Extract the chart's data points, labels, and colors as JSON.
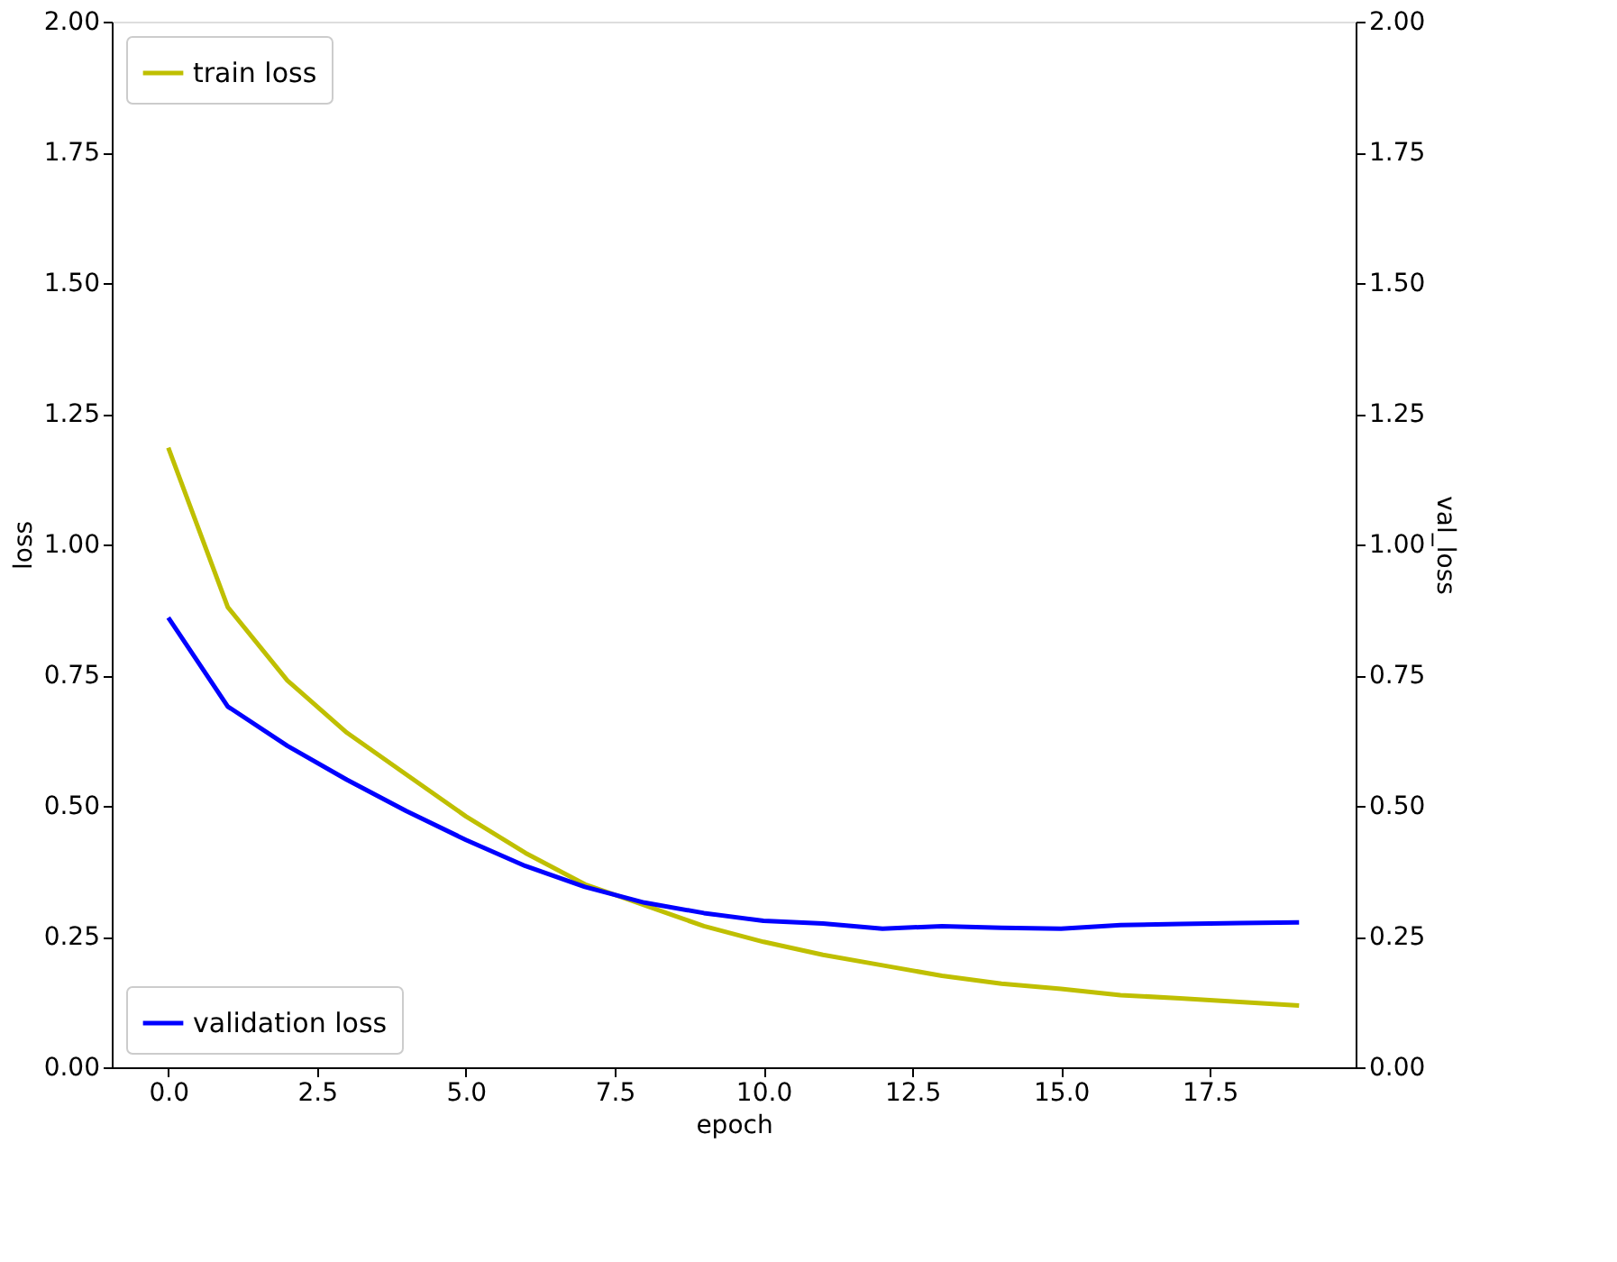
{
  "chart_data": {
    "type": "line",
    "xlabel": "epoch",
    "ylabel": "loss",
    "y2label": "val_loss",
    "x": [
      0,
      1,
      2,
      3,
      4,
      5,
      6,
      7,
      8,
      9,
      10,
      11,
      12,
      13,
      14,
      15,
      16,
      17,
      18,
      19
    ],
    "series": [
      {
        "name": "train loss",
        "color": "#bfbf00",
        "values": [
          1.185,
          0.88,
          0.74,
          0.64,
          0.56,
          0.48,
          0.41,
          0.35,
          0.31,
          0.27,
          0.24,
          0.215,
          0.195,
          0.175,
          0.16,
          0.15,
          0.138,
          0.132,
          0.125,
          0.118
        ]
      },
      {
        "name": "validation loss",
        "color": "#0000ff",
        "axis": "y2",
        "values": [
          0.86,
          0.69,
          0.615,
          0.55,
          0.49,
          0.435,
          0.385,
          0.345,
          0.315,
          0.295,
          0.28,
          0.275,
          0.265,
          0.27,
          0.267,
          0.265,
          0.272,
          0.274,
          0.276,
          0.277
        ]
      }
    ],
    "xlim": [
      -0.95,
      19.95
    ],
    "xticks": [
      {
        "value": 0,
        "label": "0.0"
      },
      {
        "value": 2.5,
        "label": "2.5"
      },
      {
        "value": 5,
        "label": "5.0"
      },
      {
        "value": 7.5,
        "label": "7.5"
      },
      {
        "value": 10,
        "label": "10.0"
      },
      {
        "value": 12.5,
        "label": "12.5"
      },
      {
        "value": 15,
        "label": "15.0"
      },
      {
        "value": 17.5,
        "label": "17.5"
      }
    ],
    "ylim": [
      0,
      2
    ],
    "yticks": [
      {
        "value": 0,
        "label": "0.00"
      },
      {
        "value": 0.25,
        "label": "0.25"
      },
      {
        "value": 0.5,
        "label": "0.50"
      },
      {
        "value": 0.75,
        "label": "0.75"
      },
      {
        "value": 1,
        "label": "1.00"
      },
      {
        "value": 1.25,
        "label": "1.25"
      },
      {
        "value": 1.5,
        "label": "1.50"
      },
      {
        "value": 1.75,
        "label": "1.75"
      },
      {
        "value": 2,
        "label": "2.00"
      }
    ],
    "y2lim": [
      0,
      2
    ],
    "y2ticks": [
      {
        "value": 0,
        "label": "0.00"
      },
      {
        "value": 0.25,
        "label": "0.25"
      },
      {
        "value": 0.5,
        "label": "0.50"
      },
      {
        "value": 0.75,
        "label": "0.75"
      },
      {
        "value": 1,
        "label": "1.00"
      },
      {
        "value": 1.25,
        "label": "1.25"
      },
      {
        "value": 1.5,
        "label": "1.50"
      },
      {
        "value": 1.75,
        "label": "1.75"
      },
      {
        "value": 2,
        "label": "2.00"
      }
    ],
    "legend": [
      "top left",
      "bottom left"
    ],
    "grid": false,
    "marker": "none",
    "line_style": "solid"
  }
}
